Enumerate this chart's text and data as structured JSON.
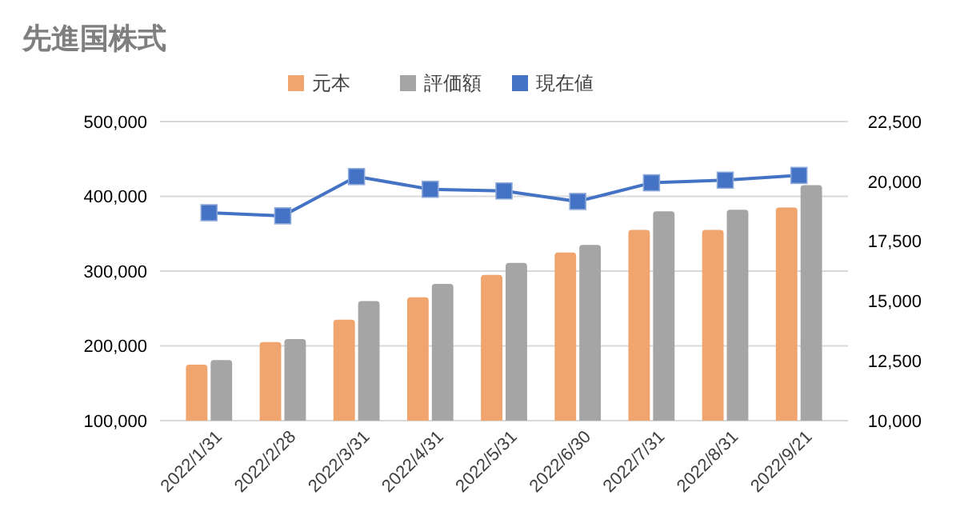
{
  "chart_data": {
    "type": "bar",
    "title": "先進国株式",
    "categories": [
      "2022/1/31",
      "2022/2/28",
      "2022/3/31",
      "2022/4/31",
      "2022/5/31",
      "2022/6/30",
      "2022/7/31",
      "2022/8/31",
      "2022/9/21"
    ],
    "series": [
      {
        "name": "元本",
        "color": "#f0a46e",
        "values": [
          175000,
          205000,
          235000,
          265000,
          295000,
          325000,
          355000,
          355000,
          385000
        ]
      },
      {
        "name": "評価額",
        "color": "#a5a5a5",
        "values": [
          181000,
          209000,
          260000,
          283000,
          311000,
          335000,
          380000,
          382000,
          415000
        ]
      },
      {
        "name": "現在値",
        "type": "line",
        "axis": "y2",
        "color": "#4472c4",
        "marker": "square",
        "values": [
          18690,
          18560,
          20200,
          19670,
          19600,
          19160,
          19940,
          20050,
          20250
        ]
      }
    ],
    "ylim": [
      100000,
      500000
    ],
    "yticks": [
      {
        "value": 100000,
        "label": "100,000"
      },
      {
        "value": 200000,
        "label": "200,000"
      },
      {
        "value": 300000,
        "label": "300,000"
      },
      {
        "value": 400000,
        "label": "400,000"
      },
      {
        "value": 500000,
        "label": "500,000"
      }
    ],
    "y2lim": [
      10000,
      22500
    ],
    "y2ticks": [
      {
        "value": 10000,
        "label": "10,000"
      },
      {
        "value": 12500,
        "label": "12,500"
      },
      {
        "value": 15000,
        "label": "15,000"
      },
      {
        "value": 17500,
        "label": "17,500"
      },
      {
        "value": 20000,
        "label": "20,000"
      },
      {
        "value": 22500,
        "label": "22,500"
      }
    ],
    "grid": "y",
    "legend": "top"
  }
}
